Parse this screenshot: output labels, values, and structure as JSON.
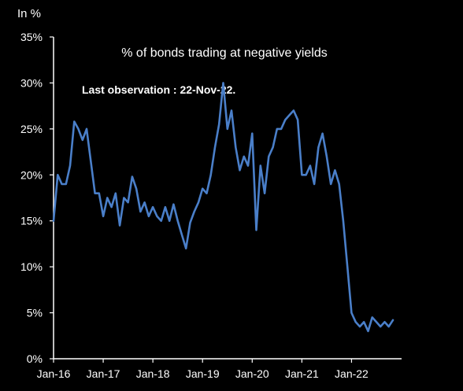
{
  "chart_data": {
    "type": "line",
    "title": "% of bonds trading at negative yields",
    "annotation": "Last observation : 22-Nov-22.",
    "unit_label": "In %",
    "xlabel": "",
    "ylabel": "",
    "ylim": [
      0,
      35
    ],
    "y_ticks": [
      0,
      5,
      10,
      15,
      20,
      25,
      30,
      35
    ],
    "y_tick_labels": [
      "0%",
      "5%",
      "10%",
      "15%",
      "20%",
      "25%",
      "30%",
      "35%"
    ],
    "x_ticks": [
      "2016-01",
      "2017-01",
      "2018-01",
      "2019-01",
      "2020-01",
      "2021-01",
      "2022-01"
    ],
    "x_tick_labels": [
      "Jan-16",
      "Jan-17",
      "Jan-18",
      "Jan-19",
      "Jan-20",
      "Jan-21",
      "Jan-22"
    ],
    "xlim": [
      "2016-01",
      "2022-11"
    ],
    "grid": false,
    "legend": "none",
    "line_color": "#4a7fc9",
    "background": "#000000",
    "series": [
      {
        "x": [
          "2016-01",
          "2016-02",
          "2016-03",
          "2016-04",
          "2016-05",
          "2016-06",
          "2016-07",
          "2016-08",
          "2016-09",
          "2016-10",
          "2016-11",
          "2016-12",
          "2017-01",
          "2017-02",
          "2017-03",
          "2017-04",
          "2017-05",
          "2017-06",
          "2017-07",
          "2017-08",
          "2017-09",
          "2017-10",
          "2017-11",
          "2017-12",
          "2018-01",
          "2018-02",
          "2018-03",
          "2018-04",
          "2018-05",
          "2018-06",
          "2018-07",
          "2018-08",
          "2018-09",
          "2018-10",
          "2018-11",
          "2018-12",
          "2019-01",
          "2019-02",
          "2019-03",
          "2019-04",
          "2019-05",
          "2019-06",
          "2019-07",
          "2019-08",
          "2019-09",
          "2019-10",
          "2019-11",
          "2019-12",
          "2020-01",
          "2020-02",
          "2020-03",
          "2020-04",
          "2020-05",
          "2020-06",
          "2020-07",
          "2020-08",
          "2020-09",
          "2020-10",
          "2020-11",
          "2020-12",
          "2021-01",
          "2021-02",
          "2021-03",
          "2021-04",
          "2021-05",
          "2021-06",
          "2021-07",
          "2021-08",
          "2021-09",
          "2021-10",
          "2021-11",
          "2021-12",
          "2022-01",
          "2022-02",
          "2022-03",
          "2022-04",
          "2022-05",
          "2022-06",
          "2022-07",
          "2022-08",
          "2022-09",
          "2022-10",
          "2022-11"
        ],
        "values": [
          15.0,
          20.0,
          19.0,
          19.0,
          21.0,
          25.8,
          25.0,
          23.8,
          25.0,
          21.5,
          18.0,
          18.0,
          15.5,
          17.5,
          16.5,
          18.0,
          14.5,
          17.5,
          17.0,
          19.8,
          18.5,
          16.0,
          17.0,
          15.5,
          16.5,
          15.5,
          15.0,
          16.5,
          15.0,
          16.8,
          15.0,
          13.5,
          12.0,
          14.8,
          16.0,
          17.0,
          18.5,
          18.0,
          20.0,
          23.0,
          25.5,
          30.0,
          25.0,
          27.0,
          23.0,
          20.5,
          22.0,
          21.0,
          24.5,
          14.0,
          21.0,
          18.0,
          22.0,
          23.0,
          25.0,
          25.0,
          26.0,
          26.5,
          27.0,
          26.0,
          20.0,
          20.0,
          21.0,
          19.0,
          23.0,
          24.5,
          22.0,
          19.0,
          20.5,
          19.0,
          15.0,
          10.0,
          5.0,
          4.0,
          3.5,
          4.0,
          3.0,
          4.5,
          4.0,
          3.5,
          4.0,
          3.5,
          4.2
        ]
      }
    ]
  }
}
